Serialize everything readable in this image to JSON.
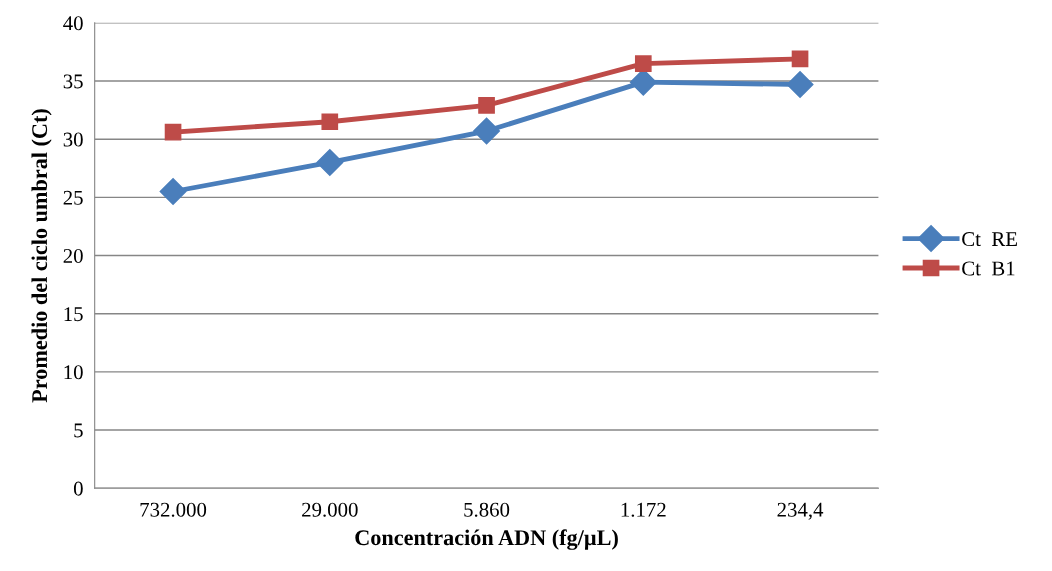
{
  "chart_data": {
    "type": "line",
    "xlabel": "Concentración ADN (fg/µL)",
    "ylabel": "Promedio del ciclo umbral (Ct)",
    "categories": [
      "732.000",
      "29.000",
      "5.860",
      "1.172",
      "234,4"
    ],
    "series": [
      {
        "name": "Ct  RE",
        "color": "#4a7ebb",
        "marker": "diamond",
        "values": [
          25.5,
          28.0,
          30.7,
          34.9,
          34.7
        ]
      },
      {
        "name": "Ct  B1",
        "color": "#be4b48",
        "marker": "square",
        "values": [
          30.6,
          31.5,
          32.9,
          36.5,
          36.9
        ]
      }
    ],
    "ylim": [
      0,
      40
    ],
    "yticks": [
      0,
      5,
      10,
      15,
      20,
      25,
      30,
      35,
      40
    ],
    "grid": "y",
    "legend": "right",
    "line_style": "solid"
  }
}
